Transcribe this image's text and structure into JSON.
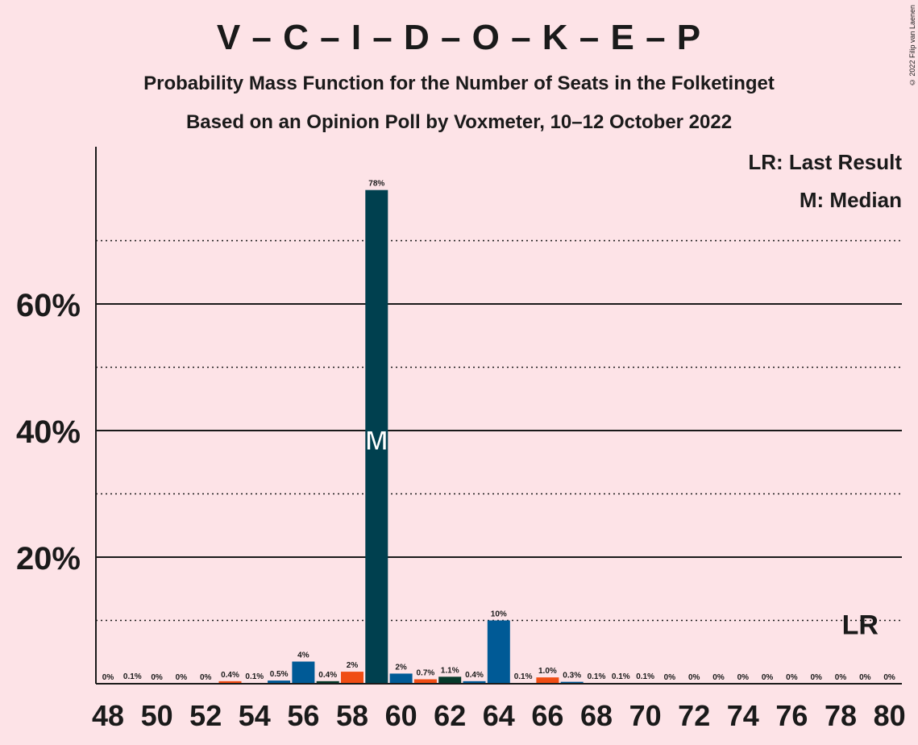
{
  "copyright": "© 2022 Filip van Laenen",
  "legend": {
    "last_result": "LR: Last Result",
    "median": "M: Median"
  },
  "chart_data": {
    "type": "bar",
    "title": "V – C – I – D – O – K – E – P",
    "subtitle": "Probability Mass Function for the Number of Seats in the Folketinget",
    "subtitle2": "Based on an Opinion Poll by Voxmeter, 10–12 October 2022",
    "xlabel": "",
    "ylabel": "",
    "ylim": [
      0,
      85
    ],
    "y_ticks": [
      {
        "value": 20,
        "label": "20%"
      },
      {
        "value": 40,
        "label": "40%"
      },
      {
        "value": 60,
        "label": "60%"
      }
    ],
    "y_dotted": [
      10,
      30,
      50,
      70
    ],
    "x_ticks": [
      48,
      50,
      52,
      54,
      56,
      58,
      60,
      62,
      64,
      66,
      68,
      70,
      72,
      74,
      76,
      78,
      80
    ],
    "grid": "horizontal",
    "legend_position": "top-right",
    "median_seat": 59,
    "median_marker": "M",
    "last_result_seat": 79,
    "last_result_marker": "LR",
    "bars": [
      {
        "seat": 48,
        "value": 0,
        "label": "0%",
        "color": "#005A96"
      },
      {
        "seat": 49,
        "value": 0.1,
        "label": "0.1%",
        "color": "#005A96"
      },
      {
        "seat": 50,
        "value": 0,
        "label": "0%",
        "color": "#005A96"
      },
      {
        "seat": 51,
        "value": 0,
        "label": "0%",
        "color": "#005A96"
      },
      {
        "seat": 52,
        "value": 0,
        "label": "0%",
        "color": "#005A96"
      },
      {
        "seat": 53,
        "value": 0.4,
        "label": "0.4%",
        "color": "#F04D14"
      },
      {
        "seat": 54,
        "value": 0.1,
        "label": "0.1%",
        "color": "#005A96"
      },
      {
        "seat": 55,
        "value": 0.5,
        "label": "0.5%",
        "color": "#005A96"
      },
      {
        "seat": 56,
        "value": 3.5,
        "label": "4%",
        "color": "#005A96"
      },
      {
        "seat": 57,
        "value": 0.4,
        "label": "0.4%",
        "color": "#063A2A"
      },
      {
        "seat": 58,
        "value": 1.9,
        "label": "2%",
        "color": "#F04D14"
      },
      {
        "seat": 59,
        "value": 78,
        "label": "78%",
        "color": "#00404F"
      },
      {
        "seat": 60,
        "value": 1.6,
        "label": "2%",
        "color": "#005A96"
      },
      {
        "seat": 61,
        "value": 0.7,
        "label": "0.7%",
        "color": "#F04D14"
      },
      {
        "seat": 62,
        "value": 1.1,
        "label": "1.1%",
        "color": "#063A2A"
      },
      {
        "seat": 63,
        "value": 0.4,
        "label": "0.4%",
        "color": "#005A96"
      },
      {
        "seat": 64,
        "value": 10,
        "label": "10%",
        "color": "#005A96"
      },
      {
        "seat": 65,
        "value": 0.1,
        "label": "0.1%",
        "color": "#005A96"
      },
      {
        "seat": 66,
        "value": 1.0,
        "label": "1.0%",
        "color": "#F04D14"
      },
      {
        "seat": 67,
        "value": 0.3,
        "label": "0.3%",
        "color": "#005A96"
      },
      {
        "seat": 68,
        "value": 0.1,
        "label": "0.1%",
        "color": "#005A96"
      },
      {
        "seat": 69,
        "value": 0.1,
        "label": "0.1%",
        "color": "#005A96"
      },
      {
        "seat": 70,
        "value": 0.1,
        "label": "0.1%",
        "color": "#005A96"
      },
      {
        "seat": 71,
        "value": 0,
        "label": "0%",
        "color": "#005A96"
      },
      {
        "seat": 72,
        "value": 0,
        "label": "0%",
        "color": "#005A96"
      },
      {
        "seat": 73,
        "value": 0,
        "label": "0%",
        "color": "#005A96"
      },
      {
        "seat": 74,
        "value": 0,
        "label": "0%",
        "color": "#005A96"
      },
      {
        "seat": 75,
        "value": 0,
        "label": "0%",
        "color": "#005A96"
      },
      {
        "seat": 76,
        "value": 0,
        "label": "0%",
        "color": "#005A96"
      },
      {
        "seat": 77,
        "value": 0,
        "label": "0%",
        "color": "#005A96"
      },
      {
        "seat": 78,
        "value": 0,
        "label": "0%",
        "color": "#005A96"
      },
      {
        "seat": 79,
        "value": 0,
        "label": "0%",
        "color": "#005A96"
      },
      {
        "seat": 80,
        "value": 0,
        "label": "0%",
        "color": "#005A96"
      }
    ]
  }
}
